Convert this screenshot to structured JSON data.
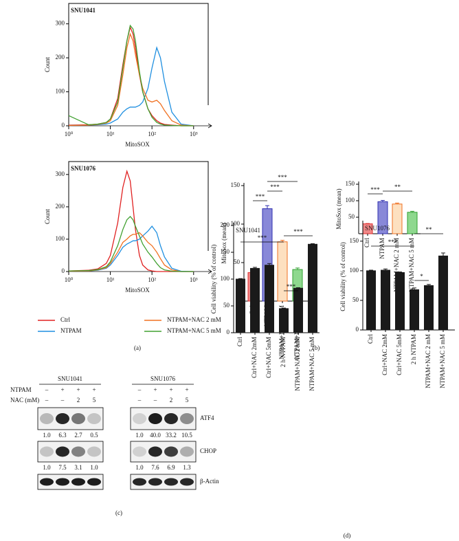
{
  "chart_data": [
    {
      "type": "line",
      "title": "SNU1041",
      "xlabel": "MitoSOX",
      "ylabel": "Count",
      "xscale": "log",
      "x": [
        1,
        3,
        5,
        8,
        10,
        15,
        20,
        25,
        30,
        35,
        40,
        50,
        60,
        80,
        100,
        130,
        160,
        200,
        300,
        500,
        1000
      ],
      "series": [
        {
          "color": "#e02020",
          "values": [
            2,
            3,
            5,
            10,
            20,
            80,
            180,
            250,
            290,
            270,
            230,
            150,
            100,
            50,
            30,
            15,
            8,
            4,
            2,
            0,
            0
          ]
        },
        {
          "color": "#1f8fe0",
          "values": [
            1,
            2,
            3,
            5,
            8,
            20,
            40,
            50,
            55,
            55,
            55,
            60,
            70,
            110,
            170,
            230,
            200,
            130,
            40,
            5,
            0
          ]
        },
        {
          "color": "#f07020",
          "values": [
            1,
            2,
            4,
            8,
            15,
            60,
            150,
            230,
            270,
            250,
            210,
            150,
            110,
            75,
            70,
            75,
            65,
            45,
            15,
            2,
            0
          ]
        },
        {
          "color": "#40a030",
          "values": [
            30,
            3,
            5,
            10,
            20,
            70,
            170,
            250,
            295,
            285,
            250,
            160,
            100,
            50,
            25,
            10,
            5,
            2,
            1,
            0,
            0
          ]
        }
      ],
      "xlim": [
        1,
        2000
      ],
      "ylim": [
        0,
        360
      ],
      "xticks": [
        {
          "value": 1,
          "label": "10⁰"
        },
        {
          "value": 10,
          "label": "10¹"
        },
        {
          "value": 100,
          "label": "10²"
        },
        {
          "value": 1000,
          "label": "10³"
        }
      ],
      "yticks": [
        0,
        100,
        200,
        300
      ]
    },
    {
      "type": "line",
      "title": "SNU1076",
      "xlabel": "MitoSOX",
      "ylabel": "Count",
      "xscale": "log",
      "x": [
        1,
        3,
        5,
        8,
        10,
        15,
        20,
        25,
        30,
        35,
        40,
        50,
        60,
        80,
        100,
        130,
        160,
        200,
        300,
        500,
        1000
      ],
      "series": [
        {
          "name": "Ctrl",
          "color": "#e02020",
          "values": [
            2,
            4,
            8,
            25,
            50,
            150,
            260,
            310,
            280,
            200,
            130,
            50,
            20,
            5,
            2,
            0,
            0,
            0,
            0,
            0,
            0
          ]
        },
        {
          "name": "NTPAM",
          "color": "#1f8fe0",
          "values": [
            1,
            2,
            4,
            10,
            20,
            50,
            75,
            85,
            90,
            95,
            95,
            100,
            110,
            125,
            140,
            120,
            80,
            45,
            10,
            1,
            0
          ]
        },
        {
          "name": "NTPAM+NAC 2 mM",
          "color": "#f07020",
          "values": [
            1,
            2,
            5,
            12,
            25,
            60,
            90,
            100,
            110,
            115,
            115,
            120,
            110,
            90,
            80,
            60,
            40,
            20,
            5,
            0,
            0
          ]
        },
        {
          "name": "NTPAM+NAC 5 mM",
          "color": "#40a030",
          "values": [
            2,
            3,
            6,
            15,
            30,
            80,
            130,
            160,
            170,
            160,
            140,
            110,
            85,
            60,
            45,
            25,
            12,
            5,
            1,
            0,
            0
          ]
        }
      ],
      "xlim": [
        1,
        2000
      ],
      "ylim": [
        0,
        340
      ],
      "xticks": [
        {
          "value": 1,
          "label": "10⁰"
        },
        {
          "value": 10,
          "label": "10¹"
        },
        {
          "value": 100,
          "label": "10²"
        },
        {
          "value": 1000,
          "label": "10³"
        }
      ],
      "yticks": [
        0,
        100,
        200,
        300
      ]
    },
    {
      "type": "bar",
      "ylabel": "MitoSox (mean)",
      "categories": [
        "Ctrl",
        "NTPAM",
        "NTPAM+NAC 2 mM",
        "NTPAM+NAC 5 mM"
      ],
      "values": [
        37,
        120,
        77,
        41
      ],
      "errors": [
        2,
        4,
        2,
        2
      ],
      "colors": [
        "#f08888",
        "#8888d8",
        "#fde0c0",
        "#8ed88e"
      ],
      "edge_colors": [
        "#e03030",
        "#3030b0",
        "#f07020",
        "#30a030"
      ],
      "ylim": [
        0,
        150
      ],
      "yticks": [
        50,
        100,
        150
      ],
      "annotations": [
        "***",
        "***",
        "***"
      ]
    },
    {
      "type": "bar",
      "ylabel": "MitoSox (mean)",
      "categories": [
        "Ctrl",
        "NTPAM",
        "NTPAM+NAC 2 mM",
        "NTPAM+NAC 5 mM"
      ],
      "values": [
        30,
        97,
        90,
        65
      ],
      "errors": [
        1,
        4,
        3,
        3
      ],
      "colors": [
        "#f08888",
        "#8888d8",
        "#fde0c0",
        "#8ed88e"
      ],
      "edge_colors": [
        "#e03030",
        "#3030b0",
        "#f07020",
        "#30a030"
      ],
      "ylim": [
        0,
        150
      ],
      "yticks": [
        50,
        100,
        150
      ],
      "annotations": [
        "***",
        "**"
      ]
    },
    {
      "type": "bar",
      "title": "SNU1041",
      "ylabel": "Cell viability (% of control)",
      "categories": [
        "Ctrl",
        "Ctrl+NAC 2mM",
        "Ctrl+NAC 5mM",
        "2 h NTPAM",
        "NTPAM+NAC 2 mM",
        "NTPAM+NAC 5 mM"
      ],
      "values": [
        100,
        120,
        126,
        45,
        83,
        165
      ],
      "errors": [
        1,
        2,
        3,
        1,
        1,
        1
      ],
      "color": "#1a1a1a",
      "ylim": [
        0,
        200
      ],
      "yticks": [
        0,
        50,
        100,
        150,
        200
      ],
      "annotations": [
        "***",
        "***",
        "***"
      ]
    },
    {
      "type": "bar",
      "title": "SNU1076",
      "ylabel": "Cell viability (% of control)",
      "categories": [
        "Ctrl",
        "Ctrl+NAC 2mM",
        "Ctrl+NAC 5mM",
        "2 h NTPAM",
        "NTPAM+NAC 2 mM",
        "NTPAM+NAC 5 mM"
      ],
      "values": [
        100,
        101,
        97,
        68,
        75,
        125
      ],
      "errors": [
        1,
        2,
        1,
        3,
        2,
        5
      ],
      "color": "#1a1a1a",
      "ylim": [
        0,
        180
      ],
      "yticks": [
        0,
        50,
        100,
        150
      ],
      "annotations": [
        "***",
        "*",
        "**"
      ]
    }
  ],
  "blot": {
    "cell_lines": [
      "SNU1041",
      "SNU1076"
    ],
    "treatments": [
      {
        "label": "NTPAM",
        "marks": [
          "–",
          "+",
          "+",
          "+"
        ]
      },
      {
        "label": "NAC (mM)",
        "marks": [
          "–",
          "–",
          "2",
          "5"
        ]
      }
    ],
    "rows": [
      {
        "label": "ATF4",
        "quant": [
          [
            "1.0",
            "6.3",
            "2.7",
            "0.5"
          ],
          [
            "1.0",
            "40.0",
            "33.2",
            "10.5"
          ]
        ]
      },
      {
        "label": "CHOP",
        "quant": [
          [
            "1.0",
            "7.5",
            "3.1",
            "1.0"
          ],
          [
            "1.0",
            "7.6",
            "6.9",
            "1.3"
          ]
        ]
      },
      {
        "label": "β-Actin"
      }
    ]
  },
  "panel_labels": [
    "(a)",
    "(b)",
    "(c)",
    "(d)"
  ]
}
